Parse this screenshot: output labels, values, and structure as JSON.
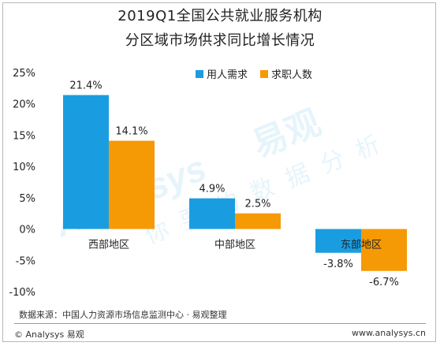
{
  "title": "2019Q1全国公共就业服务机构",
  "subtitle": "分区域市场供求同比增长情况",
  "source": "数据来源：中国人力资源市场信息监测中心 · 易观整理",
  "footer": {
    "left": "© Analysys 易观",
    "right": "www.analysys.cn"
  },
  "watermark": "Analysys 易观 你要的数据分析",
  "colors": {
    "demand": "#1a9de0",
    "supply": "#f59a05"
  },
  "chart_data": {
    "type": "bar",
    "categories": [
      "西部地区",
      "中部地区",
      "东部地区"
    ],
    "series": [
      {
        "name": "用人需求",
        "values": [
          21.4,
          4.9,
          -3.8
        ],
        "labels": [
          "21.4%",
          "4.9%",
          "-3.8%"
        ]
      },
      {
        "name": "求职人数",
        "values": [
          14.1,
          2.5,
          -6.7
        ],
        "labels": [
          "14.1%",
          "2.5%",
          "-6.7%"
        ]
      }
    ],
    "ylim": [
      -10,
      25
    ],
    "yticks": [
      25,
      20,
      15,
      10,
      5,
      0,
      -5,
      -10
    ],
    "ytick_labels": [
      "25%",
      "20%",
      "15%",
      "10%",
      "5%",
      "0%",
      "-5%",
      "-10%"
    ],
    "legend_position": "top-right",
    "grid": false
  }
}
